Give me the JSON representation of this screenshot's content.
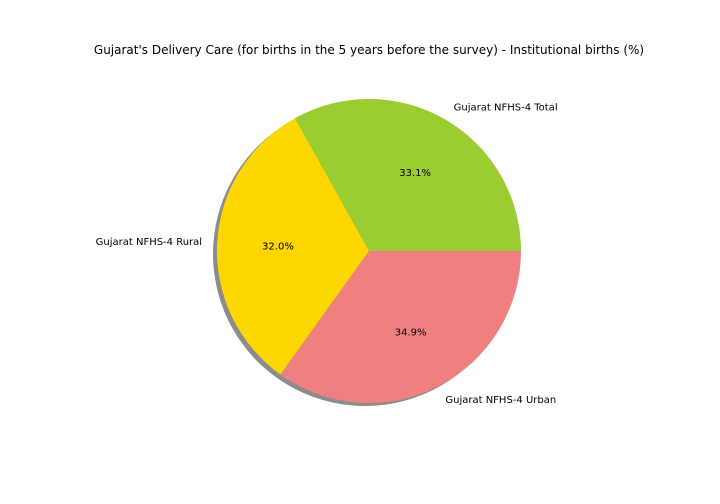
{
  "chart_data": {
    "type": "pie",
    "title": "Gujarat's Delivery Care (for births in the 5 years before the survey) - Institutional births (%)",
    "slices": [
      {
        "label": "Gujarat NFHS-4 Total",
        "value": 33.1,
        "pct_label": "33.1%",
        "color": "#9acd32"
      },
      {
        "label": "Gujarat NFHS-4 Rural",
        "value": 32.0,
        "pct_label": "32.0%",
        "color": "#ffd700"
      },
      {
        "label": "Gujarat NFHS-4 Urban",
        "value": 34.9,
        "pct_label": "34.9%",
        "color": "#f08080"
      }
    ],
    "start_angle_deg": 0,
    "direction": "counterclockwise",
    "shadow": true,
    "legend": "none"
  }
}
